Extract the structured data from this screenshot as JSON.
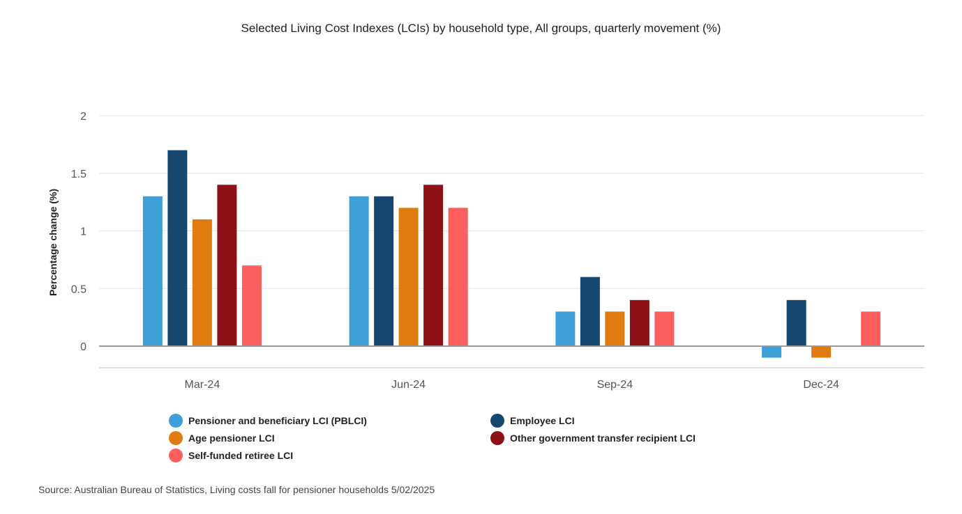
{
  "chart_data": {
    "type": "bar",
    "title": "Selected Living Cost Indexes (LCIs) by household type, All groups, quarterly movement (%)",
    "ylabel": "Percentage change (%)",
    "xlabel": "",
    "categories": [
      "Mar-24",
      "Jun-24",
      "Sep-24",
      "Dec-24"
    ],
    "ylim": [
      -0.2,
      2
    ],
    "yticks": [
      0,
      0.5,
      1,
      1.5,
      2
    ],
    "grid": true,
    "legend_position": "bottom",
    "series": [
      {
        "name": "Pensioner and beneficiary LCI (PBLCI)",
        "color": "#3d9fd6",
        "values": [
          1.3,
          1.3,
          0.3,
          -0.1
        ]
      },
      {
        "name": "Employee LCI",
        "color": "#15476f",
        "values": [
          1.7,
          1.3,
          0.6,
          0.4
        ]
      },
      {
        "name": "Age pensioner LCI",
        "color": "#e07b12",
        "values": [
          1.1,
          1.2,
          0.3,
          -0.1
        ]
      },
      {
        "name": "Other government transfer recipient LCI",
        "color": "#8c1117",
        "values": [
          1.4,
          1.4,
          0.4,
          0.0
        ]
      },
      {
        "name": "Self-funded retiree LCI",
        "color": "#fd5f5f",
        "values": [
          0.7,
          1.2,
          0.3,
          0.3
        ]
      }
    ]
  },
  "source": "Source: Australian Bureau of Statistics, Living costs fall for pensioner households 5/02/2025"
}
